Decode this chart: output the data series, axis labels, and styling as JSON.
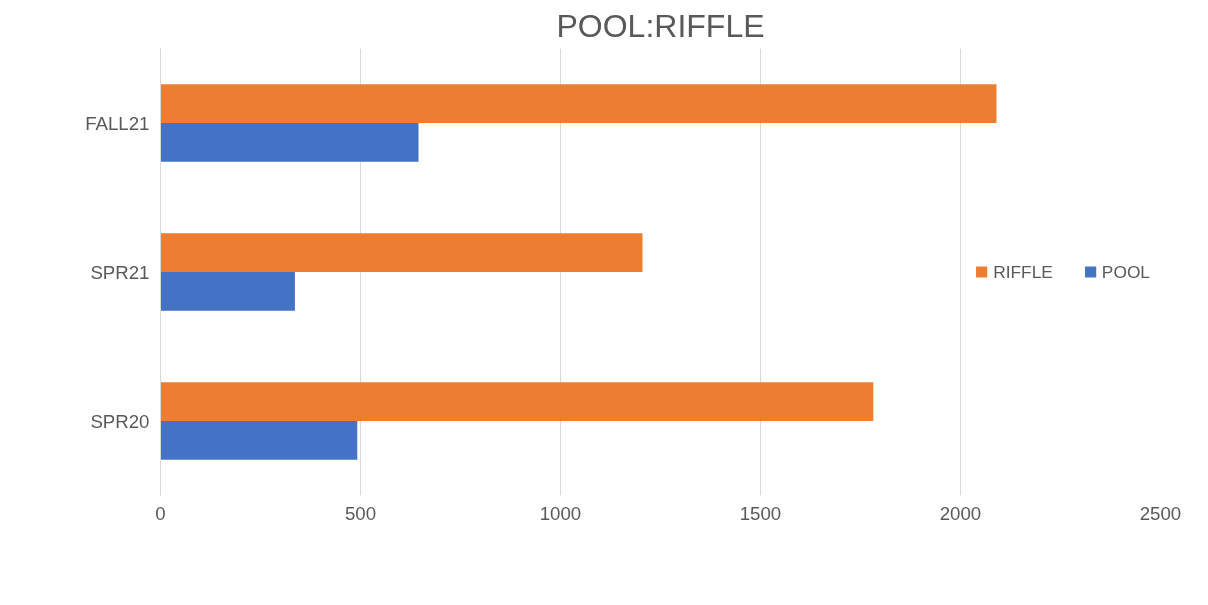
{
  "chart_data": {
    "type": "bar",
    "orientation": "horizontal",
    "title": "POOL:RIFFLE",
    "categories": [
      "FALL21",
      "SPR21",
      "SPR20"
    ],
    "series": [
      {
        "name": "POOL",
        "color": "#4472c4",
        "values": [
          645,
          336,
          492
        ]
      },
      {
        "name": "RIFFLE",
        "color": "#ed7d31",
        "values": [
          2090,
          1205,
          1782
        ]
      }
    ],
    "xlim": [
      0,
      2500
    ],
    "xticks": [
      0,
      500,
      1000,
      1500,
      2000,
      2500
    ],
    "grid": "x",
    "legend": "right"
  }
}
